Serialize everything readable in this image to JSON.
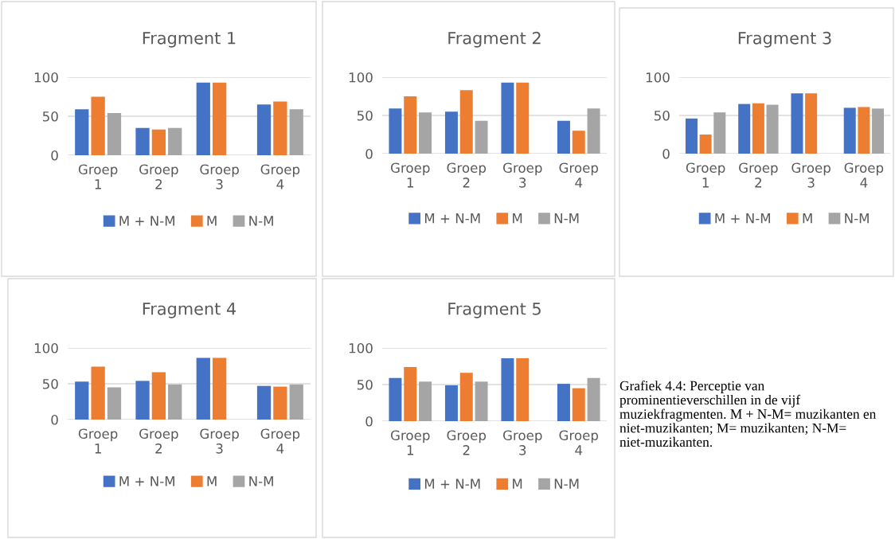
{
  "chart_data": [
    {
      "type": "bar",
      "title": "Fragment 1",
      "categories": [
        "Groep\n1",
        "Groep\n2",
        "Groep\n3",
        "Groep\n4"
      ],
      "ylim": [
        0,
        100
      ],
      "yticks": [
        0,
        50,
        100
      ],
      "grid": "y",
      "legend": "bottom",
      "series": [
        {
          "name": "M + N-M",
          "color": "#4472c4",
          "values": [
            59,
            35,
            93,
            65
          ]
        },
        {
          "name": "M",
          "color": "#ed7d31",
          "values": [
            75,
            33,
            93,
            69
          ]
        },
        {
          "name": "N-M",
          "color": "#a5a5a5",
          "values": [
            54,
            35,
            null,
            59
          ]
        }
      ]
    },
    {
      "type": "bar",
      "title": "Fragment 2",
      "categories": [
        "Groep\n1",
        "Groep\n2",
        "Groep\n3",
        "Groep\n4"
      ],
      "ylim": [
        0,
        100
      ],
      "yticks": [
        0,
        50,
        100
      ],
      "grid": "y",
      "legend": "bottom",
      "series": [
        {
          "name": "M + N-M",
          "color": "#4472c4",
          "values": [
            59,
            55,
            93,
            43
          ]
        },
        {
          "name": "M",
          "color": "#ed7d31",
          "values": [
            75,
            83,
            93,
            30
          ]
        },
        {
          "name": "N-M",
          "color": "#a5a5a5",
          "values": [
            54,
            43,
            null,
            59
          ]
        }
      ]
    },
    {
      "type": "bar",
      "title": "Fragment 3",
      "categories": [
        "Groep\n1",
        "Groep\n2",
        "Groep\n3",
        "Groep\n4"
      ],
      "ylim": [
        0,
        100
      ],
      "yticks": [
        0,
        50,
        100
      ],
      "grid": "y",
      "legend": "bottom",
      "series": [
        {
          "name": "M + N-M",
          "color": "#4472c4",
          "values": [
            46,
            65,
            79,
            60
          ]
        },
        {
          "name": "M",
          "color": "#ed7d31",
          "values": [
            25,
            66,
            79,
            61
          ]
        },
        {
          "name": "N-M",
          "color": "#a5a5a5",
          "values": [
            54,
            64,
            null,
            59
          ]
        }
      ]
    },
    {
      "type": "bar",
      "title": "Fragment 4",
      "categories": [
        "Groep\n1",
        "Groep\n2",
        "Groep\n3",
        "Groep\n4"
      ],
      "ylim": [
        0,
        100
      ],
      "yticks": [
        0,
        50,
        100
      ],
      "grid": "y",
      "legend": "bottom",
      "series": [
        {
          "name": "M + N-M",
          "color": "#4472c4",
          "values": [
            53,
            54,
            86,
            47
          ]
        },
        {
          "name": "M",
          "color": "#ed7d31",
          "values": [
            74,
            66,
            86,
            46
          ]
        },
        {
          "name": "N-M",
          "color": "#a5a5a5",
          "values": [
            45,
            49,
            null,
            49
          ]
        }
      ]
    },
    {
      "type": "bar",
      "title": "Fragment 5",
      "categories": [
        "Groep\n1",
        "Groep\n2",
        "Groep\n3",
        "Groep\n4"
      ],
      "ylim": [
        0,
        100
      ],
      "yticks": [
        0,
        50,
        100
      ],
      "grid": "y",
      "legend": "bottom",
      "series": [
        {
          "name": "M + N-M",
          "color": "#4472c4",
          "values": [
            59,
            49,
            86,
            51
          ]
        },
        {
          "name": "M",
          "color": "#ed7d31",
          "values": [
            74,
            66,
            86,
            45
          ]
        },
        {
          "name": "N-M",
          "color": "#a5a5a5",
          "values": [
            54,
            54,
            null,
            59
          ]
        }
      ],
      "annotations": [
        "Grafiek 4.4: Perceptie van prominentieverschillen in de vijf muziekfragmenten. M + N-M= muzikanten en niet-muzikanten; M= muzikanten; N-M= niet-muzikanten."
      ]
    }
  ]
}
